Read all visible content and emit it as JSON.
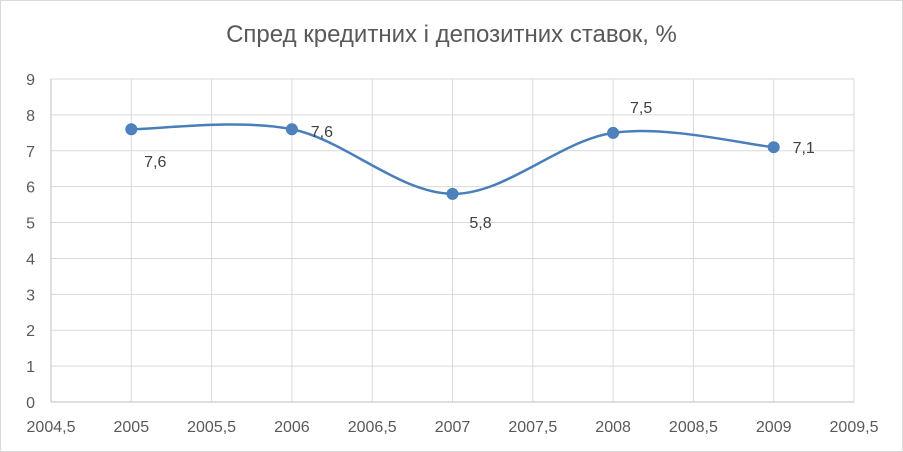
{
  "chart_data": {
    "type": "scatter",
    "title": "Спред кредитних і депозитних ставок, %",
    "xlabel": "",
    "ylabel": "",
    "xlim": [
      2004.5,
      2009.5
    ],
    "ylim": [
      0,
      9
    ],
    "x_ticks": [
      "2004,5",
      "2005",
      "2005,5",
      "2006",
      "2006,5",
      "2007",
      "2007,5",
      "2008",
      "2008,5",
      "2009",
      "2009,5"
    ],
    "y_ticks": [
      "0",
      "1",
      "2",
      "3",
      "4",
      "5",
      "6",
      "7",
      "8",
      "9"
    ],
    "grid": true,
    "smooth_line": true,
    "legend": "none",
    "series": [
      {
        "color": "#4a7ebb",
        "points": [
          {
            "x": 2005,
            "y": 7.6,
            "label": "7,6"
          },
          {
            "x": 2006,
            "y": 7.6,
            "label": "7,6"
          },
          {
            "x": 2007,
            "y": 5.8,
            "label": "5,8"
          },
          {
            "x": 2008,
            "y": 7.5,
            "label": "7,5"
          },
          {
            "x": 2009,
            "y": 7.1,
            "label": "7,1"
          }
        ]
      }
    ]
  }
}
